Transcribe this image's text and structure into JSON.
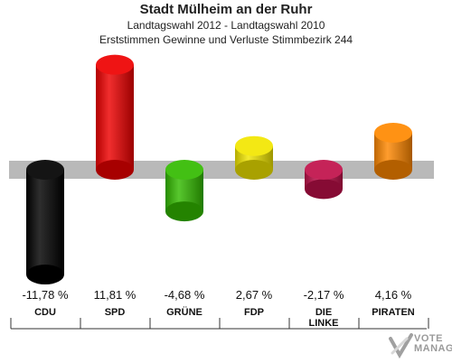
{
  "header": {
    "title": "Stadt Mülheim an der Ruhr",
    "subtitle": "Landtagswahl 2012 - Landtagswahl 2010",
    "subtitle2": "Erststimmen Gewinne und Verluste Stimmbezirk 244"
  },
  "watermark": {
    "line1": "VOTE",
    "line2": "MANAGER"
  },
  "chart_data": {
    "type": "bar",
    "title": "Stadt Mülheim an der Ruhr",
    "subtitle": "Landtagswahl 2012 - Landtagswahl 2010 / Erststimmen Gewinne und Verluste Stimmbezirk 244",
    "categories": [
      "CDU",
      "SPD",
      "GRÜNE",
      "FDP",
      "DIE LINKE",
      "PIRATEN"
    ],
    "values": [
      -11.78,
      11.81,
      -4.68,
      2.67,
      -2.17,
      4.16
    ],
    "value_labels": [
      "-11,78 %",
      "11,81 %",
      "-4,68 %",
      "2,67 %",
      "-2,17 %",
      "4,16 %"
    ],
    "colors": [
      "#000000",
      "#ee0000",
      "#33bb00",
      "#f2e600",
      "#c0104a",
      "#ff8800"
    ],
    "unit": "%",
    "ylim": [
      -13,
      13
    ],
    "grid": false,
    "legend": "none"
  }
}
